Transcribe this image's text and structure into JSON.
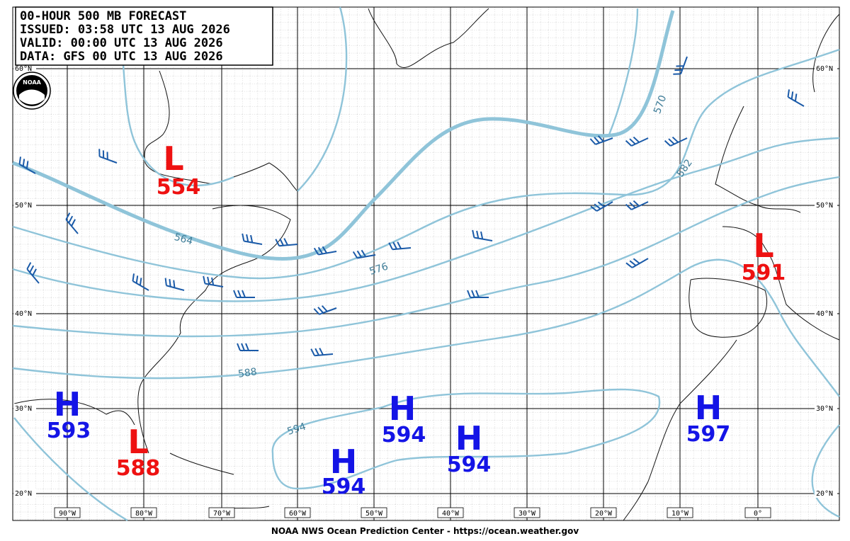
{
  "header": {
    "lines": [
      "00-HOUR 500 MB FORECAST",
      "ISSUED: 03:58 UTC 13 AUG 2026",
      "VALID:  00:00 UTC 13 AUG 2026",
      "DATA:  GFS 00 UTC 13 AUG 2026"
    ]
  },
  "logo": "NOAA",
  "latitude_labels": [
    "60°N",
    "50°N",
    "40°N",
    "30°N",
    "20°N"
  ],
  "longitude_labels": [
    "90°W",
    "80°W",
    "70°W",
    "60°W",
    "50°W",
    "40°W",
    "30°W",
    "20°W",
    "10°W",
    "0°"
  ],
  "contour_labels": [
    "564",
    "576",
    "588",
    "594",
    "570",
    "582"
  ],
  "systems": [
    {
      "symbol": "L",
      "value": "554"
    },
    {
      "symbol": "L",
      "value": "588"
    },
    {
      "symbol": "L",
      "value": "591"
    },
    {
      "symbol": "H",
      "value": "593"
    },
    {
      "symbol": "H",
      "value": "594"
    },
    {
      "symbol": "H",
      "value": "594"
    },
    {
      "symbol": "H",
      "value": "594"
    },
    {
      "symbol": "H",
      "value": "597"
    }
  ],
  "footer": "NOAA NWS Ocean Prediction Center - https://ocean.weather.gov"
}
